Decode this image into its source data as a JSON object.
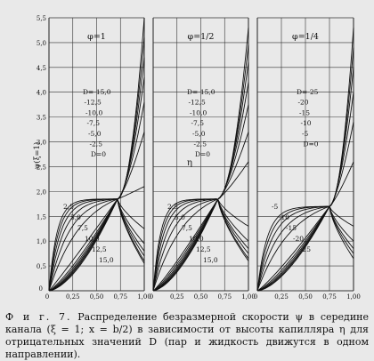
{
  "chart_data": [
    {
      "type": "line",
      "title": "φ=1",
      "xlabel": "η",
      "ylabel": "ψ(ξ=1)",
      "xlim": [
        0,
        1.0
      ],
      "ylim": [
        0,
        5.5
      ],
      "xticks": [
        "0",
        "0,25",
        "0,50",
        "0,75",
        "1,00"
      ],
      "yticks": [
        "0",
        "0,5",
        "1,0",
        "1,5",
        "2,0",
        "2,5",
        "3,0",
        "3,5",
        "4,0",
        "4,5",
        "5,0",
        "5,5"
      ],
      "cross": [
        0.72,
        1.85
      ],
      "series": [
        {
          "name": "D=-15,0",
          "end": 5.5
        },
        {
          "name": "-12,5",
          "end": 5.1
        },
        {
          "name": "-10,0",
          "end": 4.7
        },
        {
          "name": "-7,5",
          "end": 4.3
        },
        {
          "name": "-5,0",
          "end": 3.8
        },
        {
          "name": "-2,5",
          "end": 3.2
        },
        {
          "name": "D=0",
          "end": 2.1
        },
        {
          "name": "2,5",
          "end": 1.25
        },
        {
          "name": "5,0",
          "end": 0.95
        },
        {
          "name": "7,5",
          "end": 0.8
        },
        {
          "name": "10,0",
          "end": 0.7
        },
        {
          "name": "12,5",
          "end": 0.6
        },
        {
          "name": "15,0",
          "end": 0.55
        }
      ]
    },
    {
      "type": "line",
      "title": "φ=1/2",
      "xlim": [
        0,
        1.0
      ],
      "ylim": [
        0,
        5.5
      ],
      "xticks": [
        "0",
        "0,25",
        "0,50",
        "0,75",
        "1,00"
      ],
      "cross": [
        0.68,
        1.85
      ],
      "series": [
        {
          "name": "D=-15,0",
          "end": 5.3
        },
        {
          "name": "-12,5",
          "end": 4.95
        },
        {
          "name": "-10,0",
          "end": 4.6
        },
        {
          "name": "-7,5",
          "end": 4.2
        },
        {
          "name": "-5,0",
          "end": 3.75
        },
        {
          "name": "-2,5",
          "end": 3.2
        },
        {
          "name": "D=0",
          "end": 2.6
        },
        {
          "name": "2,5",
          "end": 1.3
        },
        {
          "name": "5,0",
          "end": 1.0
        },
        {
          "name": "7,5",
          "end": 0.85
        },
        {
          "name": "10,0",
          "end": 0.75
        },
        {
          "name": "12,5",
          "end": 0.65
        },
        {
          "name": "15,0",
          "end": 0.6
        }
      ]
    },
    {
      "type": "line",
      "title": "φ=1/4",
      "xlim": [
        0,
        1.0
      ],
      "ylim": [
        0,
        5.5
      ],
      "xticks": [
        "0",
        "0,25",
        "0,50",
        "0,75",
        "1,00"
      ],
      "cross": [
        0.75,
        1.7
      ],
      "series": [
        {
          "name": "D=-25",
          "end": 5.3
        },
        {
          "name": "-20",
          "end": 4.9
        },
        {
          "name": "-15",
          "end": 4.5
        },
        {
          "name": "-10",
          "end": 4.0
        },
        {
          "name": "-5",
          "end": 3.4
        },
        {
          "name": "D=0",
          "end": 2.6
        },
        {
          "name": "-5",
          "end": 1.3
        },
        {
          "name": "-10",
          "end": 1.0
        },
        {
          "name": "-15",
          "end": 0.85
        },
        {
          "name": "-20",
          "end": 0.75
        },
        {
          "name": "-25",
          "end": 0.65
        }
      ]
    }
  ],
  "caption": {
    "prefix": "Ф и г. 7.",
    "text": "Распределение безразмерной скорости ψ в середине канала (ξ = 1; x = b/2) в зависимости от высоты капилляра η для отрицательных значений D (пар и жидкость движутся в одном направлении)."
  }
}
